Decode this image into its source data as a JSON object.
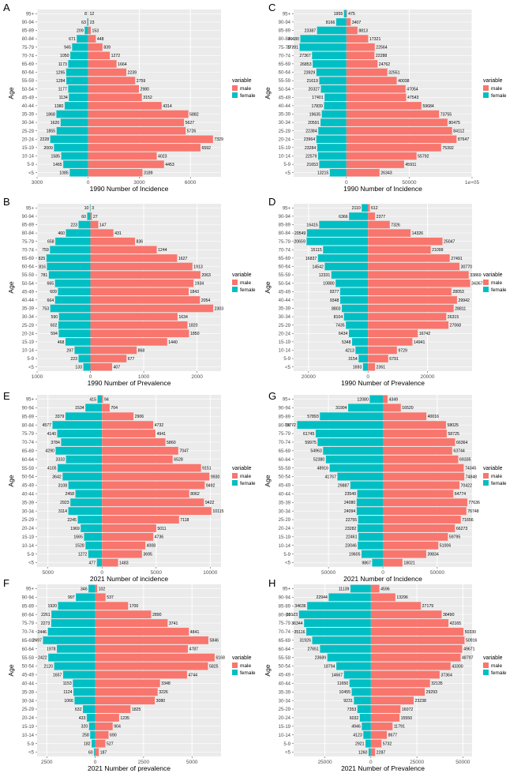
{
  "colors": {
    "male": "#F8766D",
    "female": "#00BFC4",
    "panel_bg": "#EBEBEB",
    "grid": "#FFFFFF"
  },
  "chart_data": [
    {
      "type": "bar",
      "panel": "A",
      "title": "",
      "xlabel": "1990 Number of Incidence",
      "ylabel": "Age",
      "legend_title": "variable",
      "legend": [
        "male",
        "female"
      ],
      "categories": [
        "95+",
        "90-94",
        "85-89",
        "80-84",
        "75-79",
        "70-74",
        "65-69",
        "60-64",
        "55-59",
        "50-54",
        "45-49",
        "40-44",
        "35-39",
        "30-34",
        "25-29",
        "20-24",
        "15-19",
        "10-14",
        "5-9",
        "<5"
      ],
      "series": [
        {
          "name": "female",
          "values": [
            8,
            63,
            209,
            671,
            945,
            1050,
            1173,
            1295,
            1284,
            1177,
            1134,
            1380,
            1868,
            1620,
            1855,
            2228,
            2009,
            1585,
            1465,
            1085
          ]
        },
        {
          "name": "male",
          "values": [
            12,
            23,
            153,
            448,
            839,
            1272,
            1664,
            2239,
            2759,
            2980,
            3152,
            4314,
            5882,
            5627,
            5726,
            7329,
            6592,
            4023,
            4453,
            3189
          ]
        }
      ],
      "xlim": [
        -3000,
        7800
      ],
      "xticks": [
        -3000,
        0,
        3000,
        6000
      ],
      "xtick_labels": [
        "3000",
        "0",
        "3000",
        "6000"
      ]
    },
    {
      "type": "bar",
      "panel": "B",
      "title": "",
      "xlabel": "1990 Number of Prevalence",
      "ylabel": "Age",
      "legend_title": "variable",
      "legend": [
        "male",
        "female"
      ],
      "categories": [
        "95+",
        "90-94",
        "85-89",
        "80-84",
        "75-79",
        "70-74",
        "65-69",
        "60-64",
        "55-59",
        "50-54",
        "45-49",
        "40-44",
        "35-39",
        "30-34",
        "25-29",
        "20-24",
        "15-19",
        "10-14",
        "5-9",
        "<5"
      ],
      "series": [
        {
          "name": "female",
          "values": [
            10,
            60,
            223,
            460,
            658,
            759,
            825,
            816,
            781,
            665,
            609,
            664,
            753,
            590,
            602,
            594,
            468,
            297,
            223,
            133
          ]
        },
        {
          "name": "male",
          "values": [
            3,
            27,
            147,
            431,
            836,
            1244,
            1627,
            1913,
            2063,
            1934,
            1843,
            2054,
            2303,
            1634,
            1820,
            1850,
            1440,
            868,
            677,
            407
          ]
        }
      ],
      "xlim": [
        -1000,
        2450
      ],
      "xticks": [
        -1000,
        0,
        1000,
        2000
      ],
      "xtick_labels": [
        "1000",
        "0",
        "1000",
        "2000"
      ]
    },
    {
      "type": "bar",
      "panel": "E",
      "title": "",
      "xlabel": "2021 Number of incidence",
      "ylabel": "Age",
      "legend_title": "variable",
      "legend": [
        "male",
        "female"
      ],
      "categories": [
        "95+",
        "90-94",
        "85-89",
        "80-84",
        "75-79",
        "70-74",
        "65-69",
        "60-64",
        "55-59",
        "50-54",
        "45-49",
        "40-44",
        "35-39",
        "30-34",
        "25-29",
        "20-24",
        "15-19",
        "10-14",
        "5-9",
        "<5"
      ],
      "series": [
        {
          "name": "female",
          "values": [
            415,
            1534,
            3379,
            4577,
            4140,
            3784,
            4290,
            3333,
            4105,
            3642,
            3108,
            2458,
            2923,
            3114,
            2245,
            1969,
            1665,
            1528,
            1272,
            477
          ]
        },
        {
          "name": "male",
          "values": [
            94,
            704,
            2906,
            4732,
            4941,
            5860,
            7047,
            6528,
            9151,
            9930,
            9492,
            8062,
            9422,
            10115,
            7118,
            5011,
            4736,
            4008,
            3695,
            1483
          ]
        }
      ],
      "xlim": [
        -6000,
        11000
      ],
      "xticks": [
        -5000,
        0,
        5000,
        10000
      ],
      "xtick_labels": [
        "5000",
        "0",
        "5000",
        "10000"
      ]
    },
    {
      "type": "bar",
      "panel": "F",
      "title": "",
      "xlabel": "2021 Number of prevalence",
      "ylabel": "Age",
      "legend_title": "variable",
      "legend": [
        "male",
        "female"
      ],
      "categories": [
        "95+",
        "90-94",
        "85-89",
        "80-84",
        "75-79",
        "70-74",
        "65-69",
        "60-64",
        "55-59",
        "50-54",
        "45-49",
        "40-44",
        "35-39",
        "30-34",
        "25-29",
        "20-24",
        "15-19",
        "10-14",
        "5-9",
        "<5"
      ],
      "series": [
        {
          "name": "female",
          "values": [
            346,
            997,
            1920,
            2261,
            2273,
            2446,
            2697,
            1978,
            2422,
            2120,
            1657,
            1153,
            1124,
            1066,
            632,
            433,
            320,
            258,
            182,
            60
          ]
        },
        {
          "name": "male",
          "values": [
            102,
            537,
            1700,
            2890,
            3741,
            4841,
            5846,
            4787,
            6168,
            5825,
            4744,
            3348,
            3226,
            3080,
            1825,
            1235,
            904,
            690,
            527,
            187
          ]
        }
      ],
      "xlim": [
        -3000,
        6500
      ],
      "xticks": [
        -2500,
        0,
        2500,
        5000
      ],
      "xtick_labels": [
        "2500",
        "0",
        "2500",
        "5000"
      ]
    },
    {
      "type": "bar",
      "panel": "C",
      "title": "",
      "xlabel": "1990 Number of Incidence",
      "ylabel": "Age",
      "legend_title": "variable",
      "legend": [
        "male",
        "female"
      ],
      "categories": [
        "95+",
        "90-94",
        "85-89",
        "80-84",
        "75-79",
        "70-74",
        "65-69",
        "60-64",
        "55-59",
        "50-54",
        "45-49",
        "40-44",
        "35-39",
        "30-34",
        "25-29",
        "20-24",
        "15-19",
        "10-14",
        "5-9",
        "<5"
      ],
      "series": [
        {
          "name": "female",
          "values": [
            1955,
            8166,
            23387,
            36680,
            37281,
            27367,
            26853,
            23929,
            21619,
            20327,
            17401,
            17839,
            19635,
            20591,
            22384,
            23964,
            23284,
            22579,
            21653,
            13215
          ]
        },
        {
          "name": "male",
          "values": [
            475,
            3407,
            8813,
            17321,
            22564,
            22288,
            24762,
            32551,
            40038,
            47054,
            47543,
            59684,
            73755,
            80475,
            84112,
            87647,
            75392,
            55792,
            45911,
            26343
          ]
        }
      ],
      "xlim": [
        -42000,
        100000
      ],
      "xticks": [
        0,
        50000,
        100000
      ],
      "xtick_labels": [
        "0",
        "50000",
        "1e+05"
      ]
    },
    {
      "type": "bar",
      "panel": "D",
      "title": "",
      "xlabel": "1990 Number of Prevalence",
      "ylabel": "Age",
      "legend_title": "variable",
      "legend": [
        "male",
        "female"
      ],
      "categories": [
        "95+",
        "90-94",
        "85-89",
        "80-84",
        "75-79",
        "70-74",
        "65-69",
        "60-64",
        "55-59",
        "50-54",
        "45-49",
        "40-44",
        "35-39",
        "30-34",
        "25-29",
        "20-24",
        "15-19",
        "10-14",
        "5-9",
        "<5"
      ],
      "series": [
        {
          "name": "female",
          "values": [
            2110,
            6366,
            16415,
            20549,
            20659,
            15115,
            16837,
            14542,
            12331,
            10880,
            9377,
            9348,
            8803,
            8104,
            7435,
            6434,
            5348,
            4213,
            3154,
            1693
          ]
        },
        {
          "name": "male",
          "values": [
            612,
            2377,
            7326,
            14326,
            25047,
            21099,
            27491,
            30770,
            33869,
            34367,
            28053,
            29942,
            28811,
            26315,
            27068,
            16742,
            14941,
            9729,
            6791,
            2361
          ]
        }
      ],
      "xlim": [
        -25000,
        35000
      ],
      "xticks": [
        -20000,
        0,
        20000
      ],
      "xtick_labels": [
        "20000",
        "0",
        "20000"
      ]
    },
    {
      "type": "bar",
      "panel": "G",
      "title": "",
      "xlabel": "2021 Number of Incidence",
      "ylabel": "Age",
      "legend_title": "variable",
      "legend": [
        "male",
        "female"
      ],
      "categories": [
        "95+",
        "90-94",
        "85-89",
        "80-84",
        "75-79",
        "70-74",
        "65-69",
        "60-64",
        "55-59",
        "50-54",
        "45-49",
        "40-44",
        "35-39",
        "30-34",
        "25-29",
        "20-24",
        "15-19",
        "10-14",
        "5-9",
        "<5"
      ],
      "series": [
        {
          "name": "female",
          "values": [
            12080,
            31904,
            57893,
            78772,
            61745,
            59975,
            54963,
            52380,
            48916,
            41767,
            29887,
            23549,
            24080,
            24094,
            22755,
            23282,
            22461,
            23046,
            19605,
            9867
          ]
        },
        {
          "name": "male",
          "values": [
            4349,
            16520,
            40016,
            58025,
            58725,
            66364,
            63744,
            69335,
            74345,
            74848,
            70422,
            64774,
            77636,
            76748,
            71656,
            66273,
            59795,
            51006,
            39834,
            18021
          ]
        }
      ],
      "xlim": [
        -82000,
        82000
      ],
      "xticks": [
        -50000,
        0,
        50000
      ],
      "xtick_labels": [
        "50000",
        "0",
        "50000"
      ]
    },
    {
      "type": "bar",
      "panel": "H",
      "title": "",
      "xlabel": "2021 Number of Prevalence",
      "ylabel": "Age",
      "legend_title": "variable",
      "legend": [
        "male",
        "female"
      ],
      "categories": [
        "95+",
        "90-94",
        "85-89",
        "80-84",
        "75-79",
        "70-74",
        "65-69",
        "60-64",
        "55-59",
        "50-54",
        "45-49",
        "40-44",
        "35-39",
        "30-34",
        "25-29",
        "20-24",
        "15-19",
        "10-14",
        "5-9",
        "<5"
      ],
      "series": [
        {
          "name": "female",
          "values": [
            11139,
            22944,
            34636,
            39123,
            36344,
            35116,
            31926,
            27651,
            23689,
            18794,
            14667,
            11650,
            10455,
            9231,
            7353,
            6032,
            4946,
            4123,
            2921,
            1260
          ]
        },
        {
          "name": "male",
          "values": [
            4596,
            13296,
            27179,
            38490,
            42165,
            50330,
            50916,
            49671,
            48797,
            43300,
            37364,
            32135,
            29293,
            23238,
            16072,
            15550,
            11791,
            8677,
            5732,
            2287
          ]
        }
      ],
      "xlim": [
        -42000,
        55000
      ],
      "xticks": [
        -25000,
        0,
        25000,
        50000
      ],
      "xtick_labels": [
        "25000",
        "0",
        "25000",
        "50000"
      ]
    }
  ]
}
